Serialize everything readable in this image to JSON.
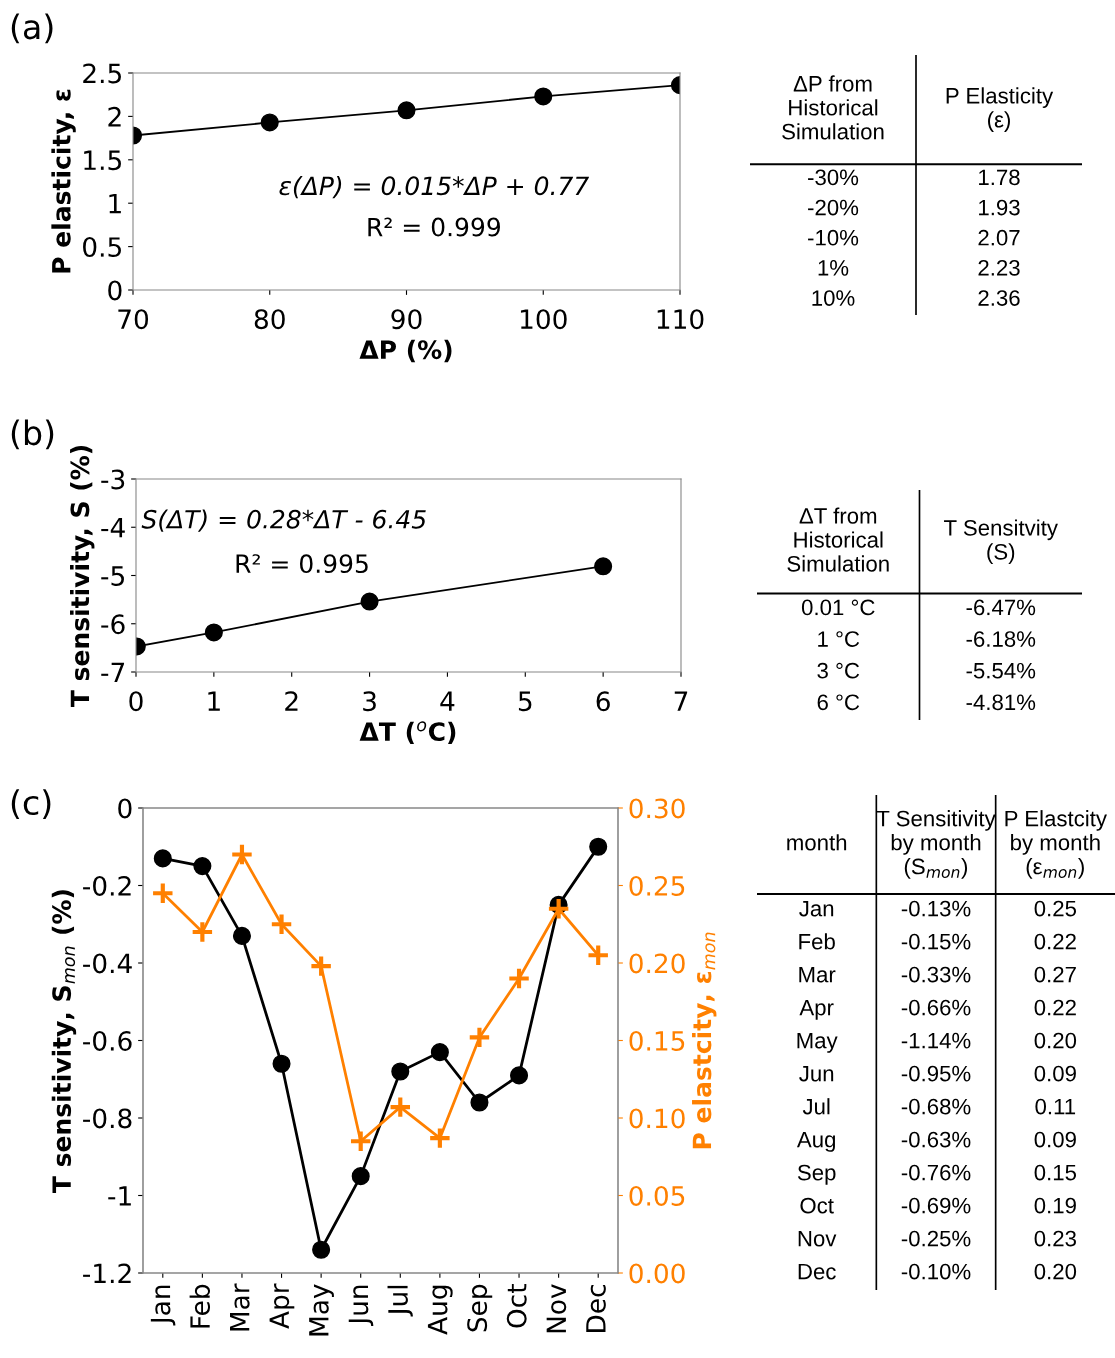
{
  "chart_data": [
    {
      "type": "line",
      "title": "(a)",
      "xlabel": "ΔP (%)",
      "ylabel": "P elasticity, ε",
      "x": [
        70,
        80,
        90,
        100,
        110
      ],
      "series": [
        {
          "color": "#000000",
          "values": [
            1.78,
            1.93,
            2.07,
            2.23,
            2.36
          ]
        }
      ],
      "xlim": [
        70,
        110
      ],
      "xticks": [
        70,
        80,
        90,
        100,
        110
      ],
      "ylim": [
        0,
        2.5
      ],
      "yticks": [
        0,
        0.5,
        1,
        1.5,
        2,
        2.5
      ],
      "marker": "circle",
      "grid": false,
      "legend": false,
      "annotations": [
        "ε(ΔP) = 0.015*ΔP + 0.77",
        "R² = 0.999"
      ]
    },
    {
      "type": "other",
      "categories": [
        "ΔP from\nHistorical\nSimulation",
        "P Elasticity\n(ε)"
      ],
      "annotations": [
        "-30%",
        "1.78",
        "-20%",
        "1.93",
        "-10%",
        "2.07",
        "1%",
        "2.23",
        "10%",
        "2.36"
      ]
    },
    {
      "type": "line",
      "title": "(b)",
      "xlabel": "ΔT ($^{o}$C)",
      "ylabel": "T sensitivity, S (%)",
      "x": [
        0.01,
        1,
        3,
        6
      ],
      "series": [
        {
          "color": "#000000",
          "values": [
            -6.47,
            -6.18,
            -5.54,
            -4.81
          ]
        }
      ],
      "xlim": [
        0,
        7
      ],
      "xticks": [
        0,
        1,
        2,
        3,
        4,
        5,
        6,
        7
      ],
      "ylim": [
        -7,
        -3
      ],
      "yticks": [
        -7,
        -6,
        -5,
        -4,
        -3
      ],
      "marker": "circle",
      "grid": false,
      "legend": false,
      "annotations": [
        "S(ΔT) = 0.28*ΔT - 6.45",
        "R² = 0.995"
      ]
    },
    {
      "type": "other",
      "categories": [
        "ΔT from\nHistorical\nSimulation",
        "T Sensitvity\n(S)"
      ],
      "annotations": [
        "0.01 °C",
        "-6.47%",
        "1 °C",
        "-6.18%",
        "3 °C",
        "-5.54%",
        "6 °C",
        "-4.81%"
      ]
    },
    {
      "type": "line",
      "title": "(c)",
      "ylabel": "T sensitivity, S$_{mon}$ (%)",
      "y2label": "P elastcity, ε$_{mon}$",
      "categories": [
        "Jan",
        "Feb",
        "Mar",
        "Apr",
        "May",
        "Jun",
        "Jul",
        "Aug",
        "Sep",
        "Oct",
        "Nov",
        "Dec"
      ],
      "series": [
        {
          "color": "#000000",
          "marker": "circle",
          "values": [
            -0.13,
            -0.15,
            -0.33,
            -0.66,
            -1.14,
            -0.95,
            -0.68,
            -0.63,
            -0.76,
            -0.69,
            -0.25,
            -0.1
          ]
        },
        {
          "color": "#ff8000",
          "marker": "cross",
          "axis": "y2",
          "values": [
            0.245,
            0.22,
            0.27,
            0.225,
            0.198,
            0.085,
            0.107,
            0.087,
            0.152,
            0.19,
            0.235,
            0.205
          ]
        }
      ],
      "ylim": [
        -1.2,
        0
      ],
      "yticks": [
        -1.2,
        -1,
        -0.8,
        -0.6,
        -0.4,
        -0.2,
        0
      ],
      "y2lim": [
        0,
        0.3
      ],
      "y2ticks": [
        {
          "value": 0,
          "label": "0.00"
        },
        {
          "value": 0.05,
          "label": "0.05"
        },
        {
          "value": 0.1,
          "label": "0.10"
        },
        {
          "value": 0.15,
          "label": "0.15"
        },
        {
          "value": 0.2,
          "label": "0.20"
        },
        {
          "value": 0.25,
          "label": "0.25"
        },
        {
          "value": 0.3,
          "label": "0.30"
        }
      ],
      "grid": false,
      "legend": false
    },
    {
      "type": "other",
      "categories": [
        "month",
        "T Sensitivity\nby month\n(S$_{mon}$)",
        "P Elastcity\nby month\n(ε$_{mon}$)"
      ],
      "annotations": [
        "Jan",
        "-0.13%",
        "0.25",
        "Feb",
        "-0.15%",
        "0.22",
        "Mar",
        "-0.33%",
        "0.27",
        "Apr",
        "-0.66%",
        "0.22",
        "May",
        "-1.14%",
        "0.20",
        "Jun",
        "-0.95%",
        "0.09",
        "Jul",
        "-0.68%",
        "0.11",
        "Aug",
        "-0.63%",
        "0.09",
        "Sep",
        "-0.76%",
        "0.15",
        "Oct",
        "-0.69%",
        "0.19",
        "Nov",
        "-0.25%",
        "0.23",
        "Dec",
        "-0.10%",
        "0.20"
      ]
    }
  ]
}
